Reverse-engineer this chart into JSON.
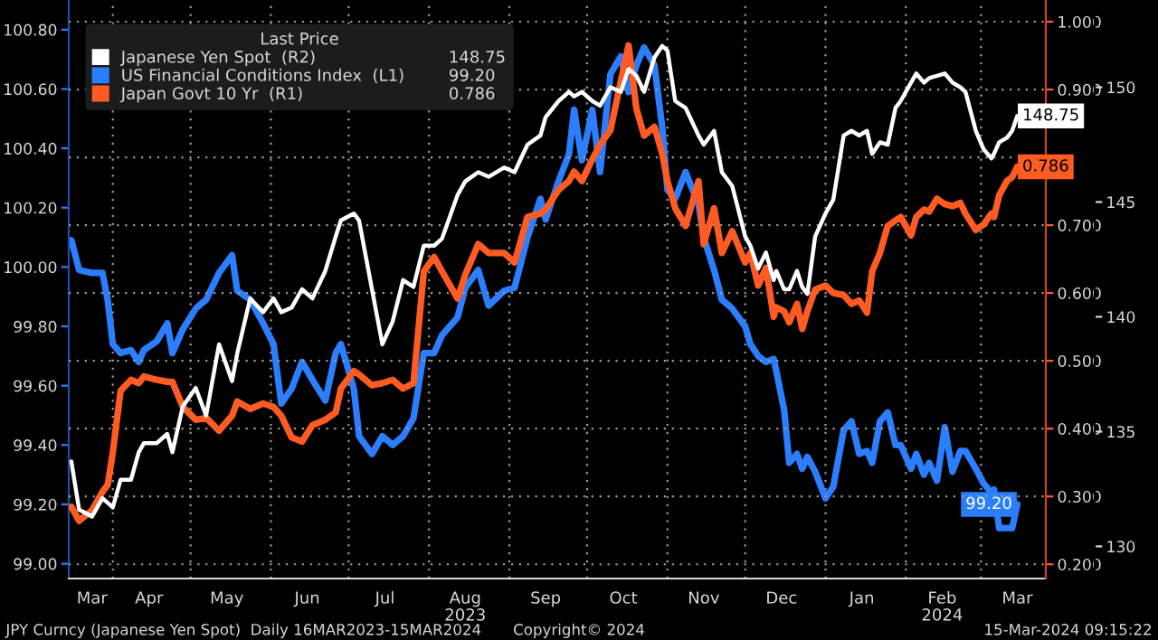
{
  "chart_data": {
    "type": "line",
    "legend_title": "Last Price",
    "legend": "top left",
    "grid": true,
    "x": [
      "2023-03-16",
      "2023-03-19",
      "2023-03-24",
      "2023-03-28",
      "2023-03-30",
      "2023-04-01",
      "2023-04-04",
      "2023-04-08",
      "2023-04-11",
      "2023-04-13",
      "2023-04-18",
      "2023-04-22",
      "2023-04-24",
      "2023-04-28",
      "2023-05-03",
      "2023-05-07",
      "2023-05-12",
      "2023-05-17",
      "2023-05-19",
      "2023-05-24",
      "2023-05-29",
      "2023-06-02",
      "2023-06-05",
      "2023-06-09",
      "2023-06-13",
      "2023-06-17",
      "2023-06-22",
      "2023-06-26",
      "2023-06-28",
      "2023-07-03",
      "2023-07-05",
      "2023-07-10",
      "2023-07-14",
      "2023-07-18",
      "2023-07-22",
      "2023-07-26",
      "2023-07-30",
      "2023-08-03",
      "2023-08-06",
      "2023-08-12",
      "2023-08-15",
      "2023-08-20",
      "2023-08-24",
      "2023-08-30",
      "2023-09-03",
      "2023-09-08",
      "2023-09-13",
      "2023-09-15",
      "2023-09-20",
      "2023-09-24",
      "2023-09-26",
      "2023-09-29",
      "2023-10-03",
      "2023-10-06",
      "2023-10-10",
      "2023-10-14",
      "2023-10-17",
      "2023-10-20",
      "2023-10-23",
      "2023-10-27",
      "2023-10-30",
      "2023-11-01",
      "2023-11-04",
      "2023-11-08",
      "2023-11-13",
      "2023-11-15",
      "2023-11-19",
      "2023-11-22",
      "2023-11-26",
      "2023-12-01",
      "2023-12-03",
      "2023-12-06",
      "2023-12-09",
      "2023-12-12",
      "2023-12-13",
      "2023-12-16",
      "2023-12-18",
      "2023-12-21",
      "2023-12-23",
      "2023-12-25",
      "2023-12-28",
      "2024-01-01",
      "2024-01-04",
      "2024-01-08",
      "2024-01-11",
      "2024-01-14",
      "2024-01-17",
      "2024-01-19",
      "2024-01-22",
      "2024-01-25",
      "2024-01-28",
      "2024-01-30",
      "2024-02-03",
      "2024-02-05",
      "2024-02-08",
      "2024-02-10",
      "2024-02-13",
      "2024-02-16",
      "2024-02-19",
      "2024-02-22",
      "2024-02-24",
      "2024-02-28",
      "2024-03-02",
      "2024-03-05",
      "2024-03-06",
      "2024-03-08",
      "2024-03-11",
      "2024-03-13",
      "2024-03-15"
    ],
    "xlim": [
      "2023-03-15",
      "2024-03-26"
    ],
    "xticks": [
      {
        "value": "2023-03-24",
        "label": "Mar"
      },
      {
        "value": "2023-04-01",
        "label": null
      },
      {
        "value": "2023-04-15",
        "label": "Apr"
      },
      {
        "value": "2023-05-01",
        "label": null
      },
      {
        "value": "2023-05-15",
        "label": "May"
      },
      {
        "value": "2023-06-01",
        "label": null
      },
      {
        "value": "2023-06-15",
        "label": "Jun"
      },
      {
        "value": "2023-07-01",
        "label": null
      },
      {
        "value": "2023-07-15",
        "label": "Jul"
      },
      {
        "value": "2023-08-01",
        "label": null
      },
      {
        "value": "2023-08-15",
        "label": "Aug\n2023"
      },
      {
        "value": "2023-09-01",
        "label": null
      },
      {
        "value": "2023-09-15",
        "label": "Sep"
      },
      {
        "value": "2023-10-01",
        "label": null
      },
      {
        "value": "2023-10-15",
        "label": "Oct"
      },
      {
        "value": "2023-11-01",
        "label": null
      },
      {
        "value": "2023-11-15",
        "label": "Nov"
      },
      {
        "value": "2023-12-01",
        "label": null
      },
      {
        "value": "2023-12-15",
        "label": "Dec"
      },
      {
        "value": "2024-01-01",
        "label": null
      },
      {
        "value": "2024-01-15",
        "label": "Jan"
      },
      {
        "value": "2024-02-01",
        "label": null
      },
      {
        "value": "2024-02-15",
        "label": "Feb\n2024"
      },
      {
        "value": "2024-03-01",
        "label": null
      },
      {
        "value": "2024-03-15",
        "label": "Mar"
      }
    ],
    "ylim": [
      98.95,
      100.9
    ],
    "yticks": [
      {
        "value": 99.0,
        "label": "99.00"
      },
      {
        "value": 99.2,
        "label": "99.20"
      },
      {
        "value": 99.4,
        "label": "99.40"
      },
      {
        "value": 99.6,
        "label": "99.60"
      },
      {
        "value": 99.8,
        "label": "99.80"
      },
      {
        "value": 100.0,
        "label": "100.00"
      },
      {
        "value": 100.2,
        "label": "100.20"
      },
      {
        "value": 100.4,
        "label": "100.40"
      },
      {
        "value": 100.6,
        "label": "100.60"
      },
      {
        "value": 100.8,
        "label": "100.80"
      }
    ],
    "y2lim": [
      0.179,
      1.032
    ],
    "y2ticks": [
      {
        "value": 0.2,
        "label": "0.200"
      },
      {
        "value": 0.3,
        "label": "0.300"
      },
      {
        "value": 0.4,
        "label": "0.400"
      },
      {
        "value": 0.5,
        "label": "0.500"
      },
      {
        "value": 0.6,
        "label": "0.600"
      },
      {
        "value": 0.7,
        "label": "0.700"
      },
      {
        "value": 0.8,
        "label": null
      },
      {
        "value": 0.9,
        "label": "0.900"
      },
      {
        "value": 1.0,
        "label": "1.000"
      }
    ],
    "y3lim": [
      128.6,
      153.8
    ],
    "y3ticks": [
      130,
      135,
      140,
      145,
      150
    ],
    "annotations": [
      "JPY Curncy (Japanese Yen Spot)  Daily 16MAR2023-15MAR2024",
      "Copyright© 2024",
      "15-Mar-2024 09:15:22"
    ],
    "series": [
      {
        "name": "Japanese Yen Spot  (R2)",
        "color": "#ffffff",
        "axis": "y3",
        "values": [
          133.7,
          131.6,
          131.3,
          132.1,
          131.9,
          131.7,
          132.9,
          132.9,
          134.1,
          134.5,
          134.5,
          134.9,
          134.1,
          136.1,
          136.9,
          135.7,
          138.8,
          137.2,
          138.4,
          140.8,
          140.2,
          140.8,
          140.2,
          140.4,
          141.2,
          140.8,
          142.0,
          143.5,
          144.2,
          144.5,
          144.2,
          141.2,
          138.8,
          139.8,
          141.6,
          141.3,
          143.1,
          143.1,
          143.4,
          145.3,
          145.9,
          146.3,
          146.1,
          146.5,
          146.3,
          147.5,
          147.9,
          148.7,
          149.4,
          149.8,
          149.6,
          149.8,
          149.4,
          149.2,
          150.0,
          149.8,
          150.8,
          150.5,
          149.8,
          151.3,
          151.8,
          151.6,
          149.4,
          149.1,
          147.9,
          147.5,
          148.1,
          146.3,
          145.7,
          143.5,
          143.1,
          142.1,
          142.8,
          141.6,
          142.0,
          141.2,
          141.2,
          142.0,
          141.3,
          141.0,
          143.5,
          144.5,
          145.1,
          147.9,
          148.1,
          147.9,
          148.1,
          147.1,
          147.6,
          147.5,
          149.1,
          149.4,
          150.2,
          150.6,
          150.2,
          150.4,
          150.5,
          150.6,
          150.2,
          150.0,
          149.8,
          148.1,
          147.3,
          146.9,
          147.1,
          147.6,
          147.8,
          148.1,
          148.75
        ],
        "value_labels": [
          null,
          null,
          null,
          null,
          null,
          null,
          null,
          null,
          null,
          null,
          null,
          null,
          null,
          null,
          null,
          null,
          null,
          null,
          null,
          null,
          null,
          null,
          null,
          null,
          null,
          null,
          null,
          null,
          null,
          null,
          null,
          null,
          null,
          null,
          null,
          null,
          null,
          null,
          null,
          null,
          null,
          null,
          null,
          null,
          null,
          null,
          null,
          null,
          null,
          null,
          null,
          null,
          null,
          null,
          null,
          null,
          null,
          null,
          null,
          null,
          null,
          null,
          null,
          null,
          null,
          null,
          null,
          null,
          null,
          null,
          null,
          null,
          null,
          null,
          null,
          null,
          null,
          null,
          null,
          null,
          null,
          null,
          null,
          null,
          null,
          null,
          null,
          null,
          null,
          null,
          null,
          null,
          null,
          null,
          null,
          null,
          null,
          null,
          null,
          null,
          null,
          null,
          null,
          null,
          null,
          null,
          null,
          null,
          "148.75"
        ]
      },
      {
        "name": "US Financial Conditions Index  (L1)",
        "color": "#2b7fff",
        "axis": "y",
        "values": [
          100.09,
          99.99,
          99.98,
          99.98,
          99.89,
          99.74,
          99.71,
          99.72,
          99.68,
          99.72,
          99.75,
          99.81,
          99.71,
          99.79,
          99.86,
          99.89,
          99.98,
          100.04,
          99.92,
          99.89,
          99.81,
          99.74,
          99.54,
          99.59,
          99.68,
          99.62,
          99.55,
          99.71,
          99.74,
          99.59,
          99.43,
          99.37,
          99.43,
          99.4,
          99.43,
          99.49,
          99.71,
          99.71,
          99.77,
          99.83,
          99.93,
          99.99,
          99.87,
          99.92,
          99.93,
          100.1,
          100.23,
          100.16,
          100.29,
          100.38,
          100.53,
          100.36,
          100.53,
          100.32,
          100.65,
          100.71,
          100.59,
          100.68,
          100.74,
          100.68,
          100.47,
          100.26,
          100.23,
          100.32,
          100.21,
          100.1,
          99.99,
          99.89,
          99.86,
          99.8,
          99.74,
          99.7,
          99.68,
          99.69,
          99.65,
          99.52,
          99.34,
          99.37,
          99.32,
          99.36,
          99.31,
          99.22,
          99.26,
          99.45,
          99.48,
          99.37,
          99.38,
          99.34,
          99.48,
          99.51,
          99.4,
          99.4,
          99.32,
          99.37,
          99.3,
          99.34,
          99.28,
          99.46,
          99.31,
          99.38,
          99.38,
          99.32,
          99.27,
          99.24,
          99.25,
          99.12,
          99.12,
          99.12,
          99.2
        ],
        "value_labels": [
          null,
          null,
          null,
          null,
          null,
          null,
          null,
          null,
          null,
          null,
          null,
          null,
          null,
          null,
          null,
          null,
          null,
          null,
          null,
          null,
          null,
          null,
          null,
          null,
          null,
          null,
          null,
          null,
          null,
          null,
          null,
          null,
          null,
          null,
          null,
          null,
          null,
          null,
          null,
          null,
          null,
          null,
          null,
          null,
          null,
          null,
          null,
          null,
          null,
          null,
          null,
          null,
          null,
          null,
          null,
          null,
          null,
          null,
          null,
          null,
          null,
          null,
          null,
          null,
          null,
          null,
          null,
          null,
          null,
          null,
          null,
          null,
          null,
          null,
          null,
          null,
          null,
          null,
          null,
          null,
          null,
          null,
          null,
          null,
          null,
          null,
          null,
          null,
          null,
          null,
          null,
          null,
          null,
          null,
          null,
          null,
          null,
          null,
          null,
          null,
          null,
          null,
          null,
          null,
          null,
          null,
          null,
          null,
          "99.20"
        ]
      },
      {
        "name": "Japan Govt 10 Yr  (R1)",
        "color": "#ff5b22",
        "axis": "y2",
        "values": [
          0.285,
          0.264,
          0.28,
          0.307,
          0.317,
          0.365,
          0.456,
          0.472,
          0.467,
          0.477,
          0.472,
          0.469,
          0.469,
          0.432,
          0.413,
          0.416,
          0.397,
          0.419,
          0.44,
          0.429,
          0.437,
          0.432,
          0.419,
          0.387,
          0.381,
          0.405,
          0.413,
          0.424,
          0.459,
          0.485,
          0.48,
          0.464,
          0.467,
          0.472,
          0.459,
          0.467,
          0.632,
          0.653,
          0.632,
          0.592,
          0.627,
          0.672,
          0.659,
          0.659,
          0.645,
          0.712,
          0.717,
          0.723,
          0.752,
          0.765,
          0.779,
          0.765,
          0.797,
          0.819,
          0.84,
          0.912,
          0.965,
          0.872,
          0.832,
          0.845,
          0.805,
          0.765,
          0.725,
          0.699,
          0.765,
          0.672,
          0.725,
          0.659,
          0.691,
          0.645,
          0.659,
          0.611,
          0.637,
          0.565,
          0.579,
          0.573,
          0.557,
          0.584,
          0.547,
          0.573,
          0.605,
          0.611,
          0.6,
          0.597,
          0.584,
          0.589,
          0.571,
          0.632,
          0.659,
          0.699,
          0.707,
          0.712,
          0.685,
          0.712,
          0.723,
          0.72,
          0.739,
          0.731,
          0.728,
          0.733,
          0.717,
          0.693,
          0.701,
          0.717,
          0.712,
          0.744,
          0.765,
          0.771,
          0.786
        ],
        "value_labels": [
          null,
          null,
          null,
          null,
          null,
          null,
          null,
          null,
          null,
          null,
          null,
          null,
          null,
          null,
          null,
          null,
          null,
          null,
          null,
          null,
          null,
          null,
          null,
          null,
          null,
          null,
          null,
          null,
          null,
          null,
          null,
          null,
          null,
          null,
          null,
          null,
          null,
          null,
          null,
          null,
          null,
          null,
          null,
          null,
          null,
          null,
          null,
          null,
          null,
          null,
          null,
          null,
          null,
          null,
          null,
          null,
          null,
          null,
          null,
          null,
          null,
          null,
          null,
          null,
          null,
          null,
          null,
          null,
          null,
          null,
          null,
          null,
          null,
          null,
          null,
          null,
          null,
          null,
          null,
          null,
          null,
          null,
          null,
          null,
          null,
          null,
          null,
          null,
          null,
          null,
          null,
          null,
          null,
          null,
          null,
          null,
          null,
          null,
          null,
          null,
          null,
          null,
          null,
          null,
          null,
          null,
          null,
          null,
          "0.786"
        ]
      }
    ]
  }
}
